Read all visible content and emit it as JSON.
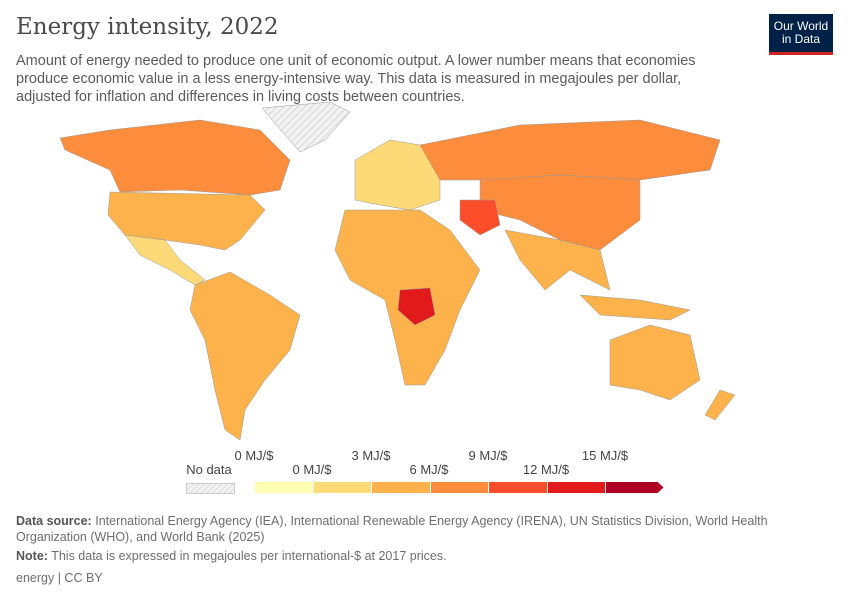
{
  "header": {
    "title": "Energy intensity, 2022",
    "subtitle": "Amount of energy needed to produce one unit of economic output. A lower number means that economies produce economic value in a less energy-intensive way. This data is measured in megajoules per dollar, adjusted for inflation and differences in living costs between countries.",
    "logo": [
      "Our World",
      "in Data"
    ]
  },
  "legend": {
    "no_data": "No data",
    "top_labels": [
      "0 MJ/$",
      "3 MJ/$",
      "9 MJ/$",
      "15 MJ/$"
    ],
    "bottom_labels": [
      "0 MJ/$",
      "6 MJ/$",
      "12 MJ/$"
    ],
    "bins": [
      0,
      1.5,
      3,
      4.5,
      6,
      9,
      12,
      15
    ],
    "colors": [
      "#ffffb3",
      "#fed977",
      "#feb24c",
      "#fd8d3c",
      "#fc4e2a",
      "#e31a1c",
      "#b10026"
    ],
    "no_data_color": "#e6e6e6"
  },
  "footer": {
    "source_label": "Data source:",
    "source": "International Energy Agency (IEA), International Renewable Energy Agency (IRENA), UN Statistics Division, World Health Organization (WHO), and World Bank (2025)",
    "note_label": "Note:",
    "note": "This data is expressed in megajoules per international-$ at 2017 prices.",
    "license": "energy | CC BY"
  }
}
